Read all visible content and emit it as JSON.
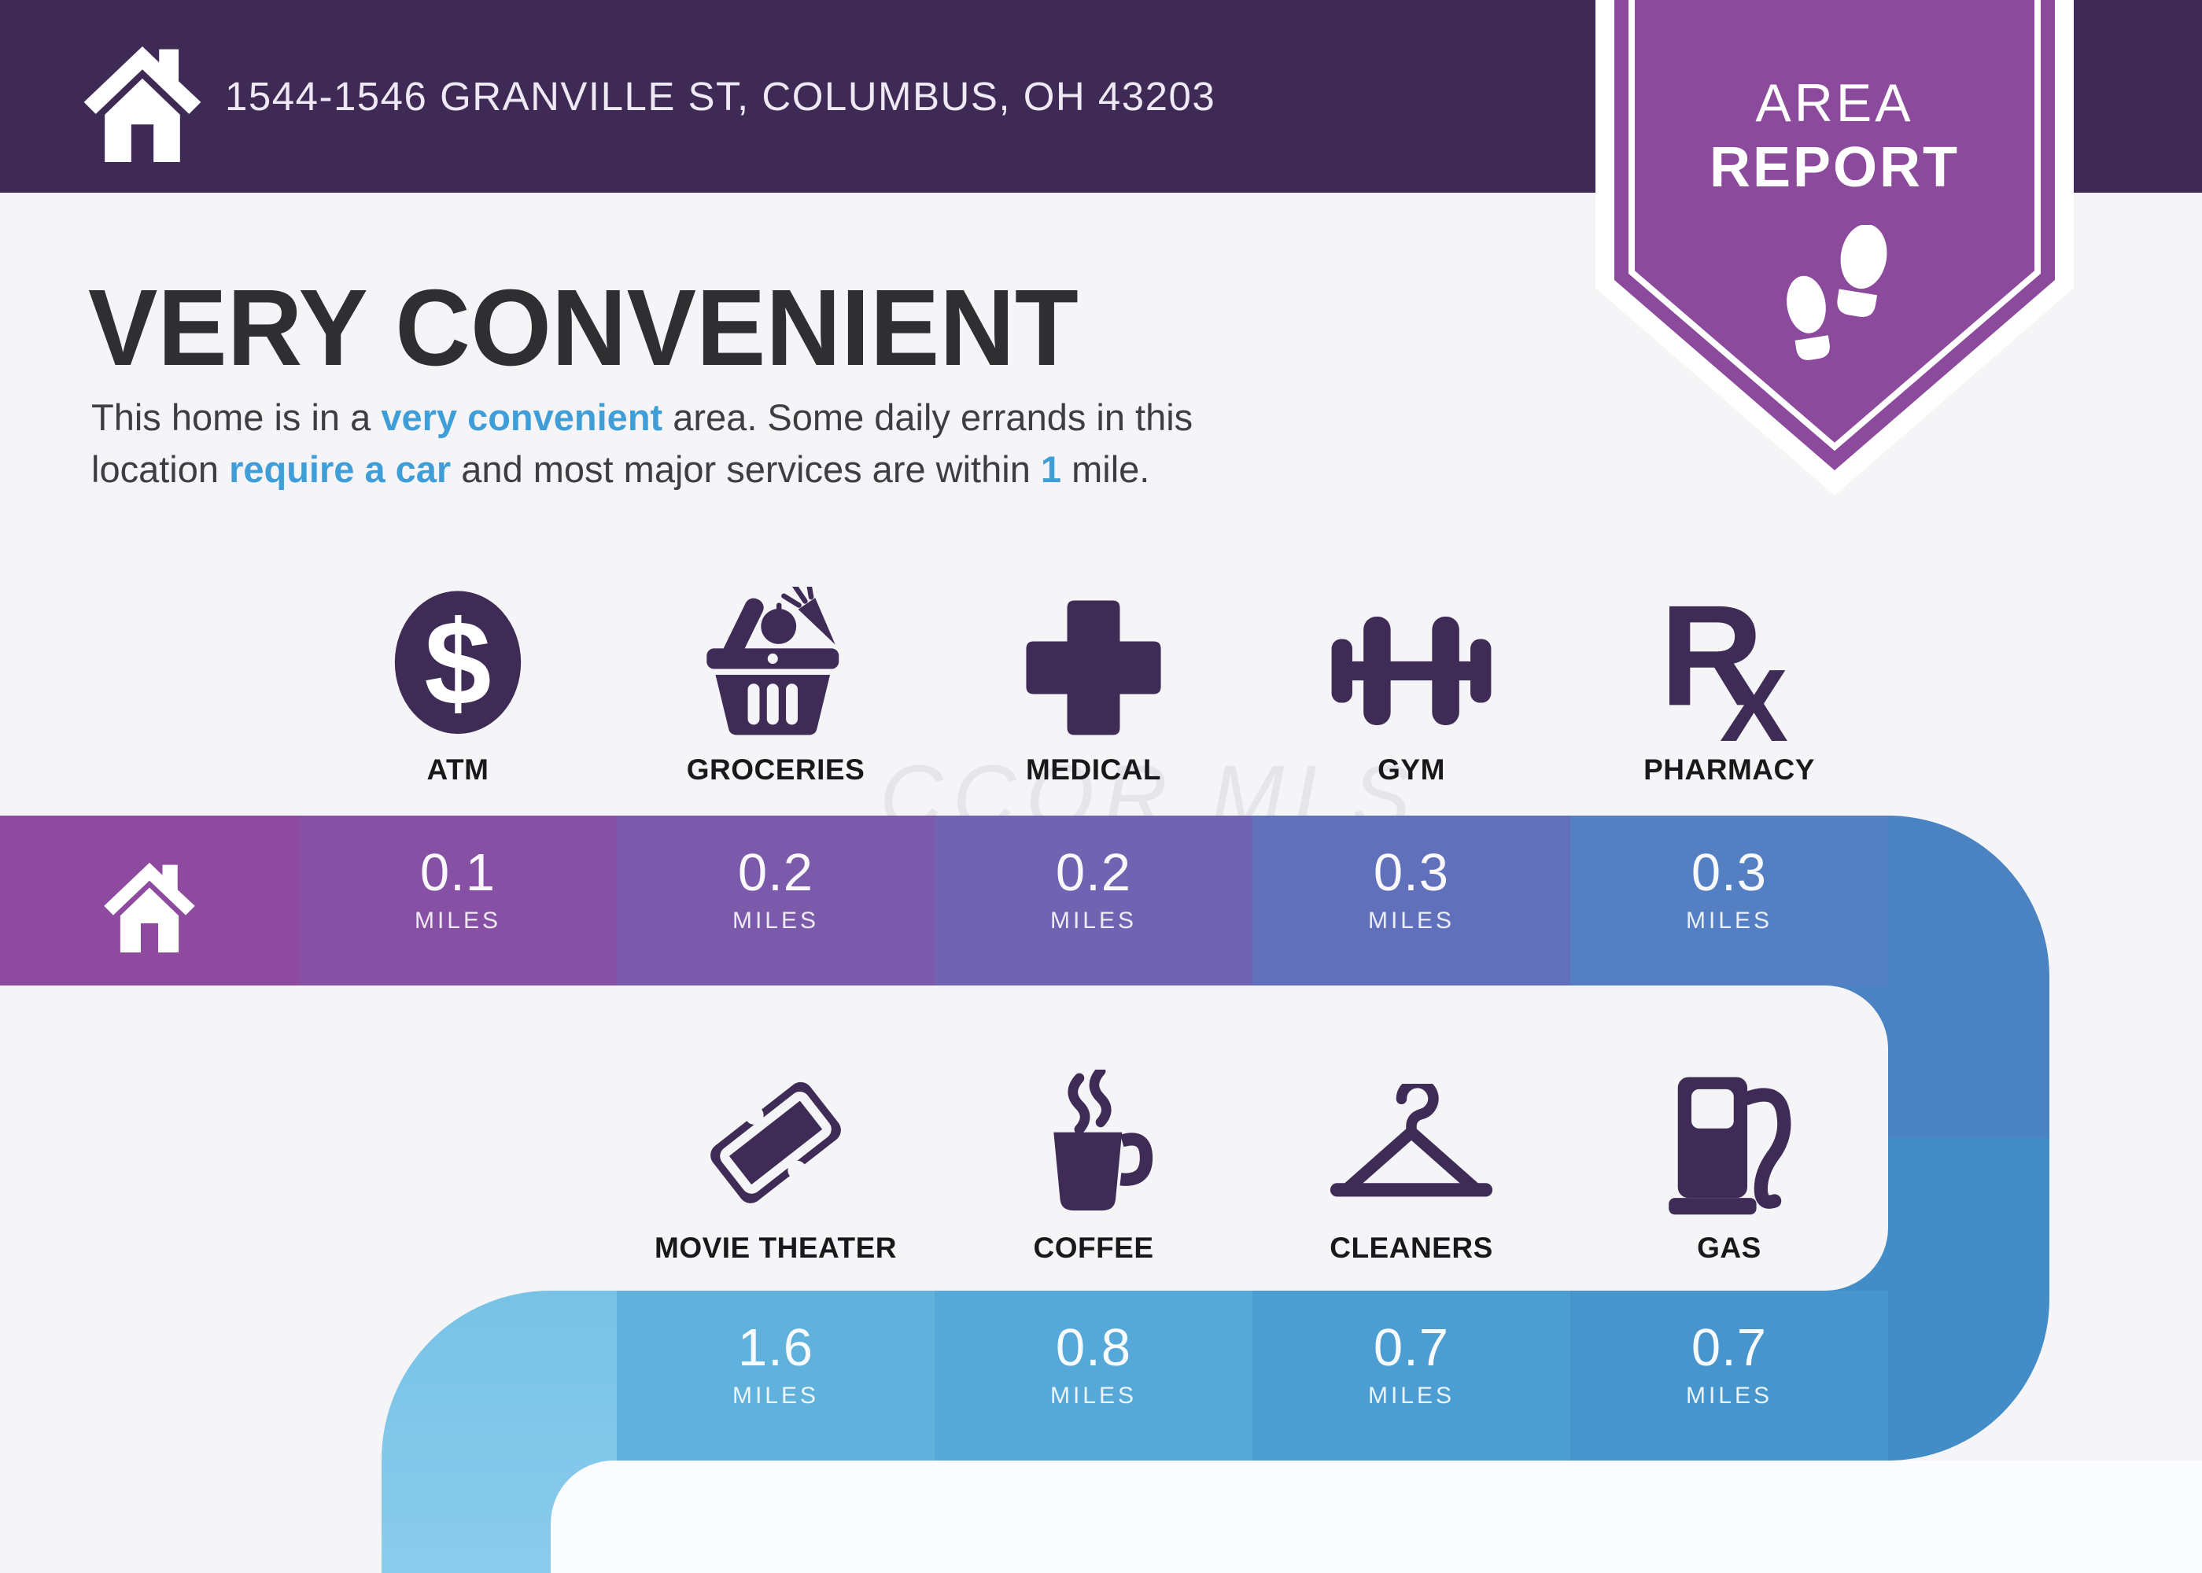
{
  "header": {
    "address": "1544-1546 GRANVILLE ST, COLUMBUS, OH 43203"
  },
  "badge": {
    "line1": "AREA",
    "line2": "REPORT",
    "icon": "footprints-icon"
  },
  "title": "VERY CONVENIENT",
  "intro": {
    "s1": "This home is in a ",
    "s2": "very convenient",
    "s3": " area. Some daily errands in this",
    "s4": "location ",
    "s5": "require a car",
    "s6": " and most major services are within ",
    "s7": "1",
    "s8": " mile."
  },
  "watermark": "CCOR MLS",
  "home_marker": {
    "icon": "home-icon"
  },
  "rows": [
    {
      "pois": [
        {
          "id": "atm",
          "icon": "atm-icon",
          "label": "ATM",
          "distance": "0.1",
          "unit": "MILES",
          "seg_color": "#8651a4"
        },
        {
          "id": "groceries",
          "icon": "groceries-icon",
          "label": "GROCERIES",
          "distance": "0.2",
          "unit": "MILES",
          "seg_color": "#7b59ab"
        },
        {
          "id": "medical",
          "icon": "medical-icon",
          "label": "MEDICAL",
          "distance": "0.2",
          "unit": "MILES",
          "seg_color": "#6f63b2"
        },
        {
          "id": "gym",
          "icon": "gym-icon",
          "label": "GYM",
          "distance": "0.3",
          "unit": "MILES",
          "seg_color": "#6170bb"
        },
        {
          "id": "pharmacy",
          "icon": "pharmacy-icon",
          "label": "PHARMACY",
          "distance": "0.3",
          "unit": "MILES",
          "seg_color": "#5480c3"
        }
      ]
    },
    {
      "pois": [
        {
          "id": "movie",
          "icon": "movie-ticket-icon",
          "label": "MOVIE THEATER",
          "distance": "1.6",
          "unit": "MILES",
          "seg_color": "#60b1dc"
        },
        {
          "id": "coffee",
          "icon": "coffee-icon",
          "label": "COFFEE",
          "distance": "0.8",
          "unit": "MILES",
          "seg_color": "#55a8d8"
        },
        {
          "id": "cleaners",
          "icon": "cleaners-icon",
          "label": "CLEANERS",
          "distance": "0.7",
          "unit": "MILES",
          "seg_color": "#4c9ed2"
        },
        {
          "id": "gas",
          "icon": "gas-icon",
          "label": "GAS",
          "distance": "0.7",
          "unit": "MILES",
          "seg_color": "#4695cd"
        }
      ]
    }
  ],
  "colors": {
    "bg": "#f5f5f7",
    "header_bg": "#3e2a55",
    "badge_purple": "#8c4a9c",
    "icon_purple": "#3e2c57",
    "accent_blue": "#3f9ed8",
    "path_start": "#8e4a9e",
    "path_right_top": "#4a82c2",
    "path_right_bottom": "#428dc8",
    "path_left_top": "#77c2e6",
    "path_left_bottom": "#8accec",
    "white_notch": "#fbfcfe"
  }
}
